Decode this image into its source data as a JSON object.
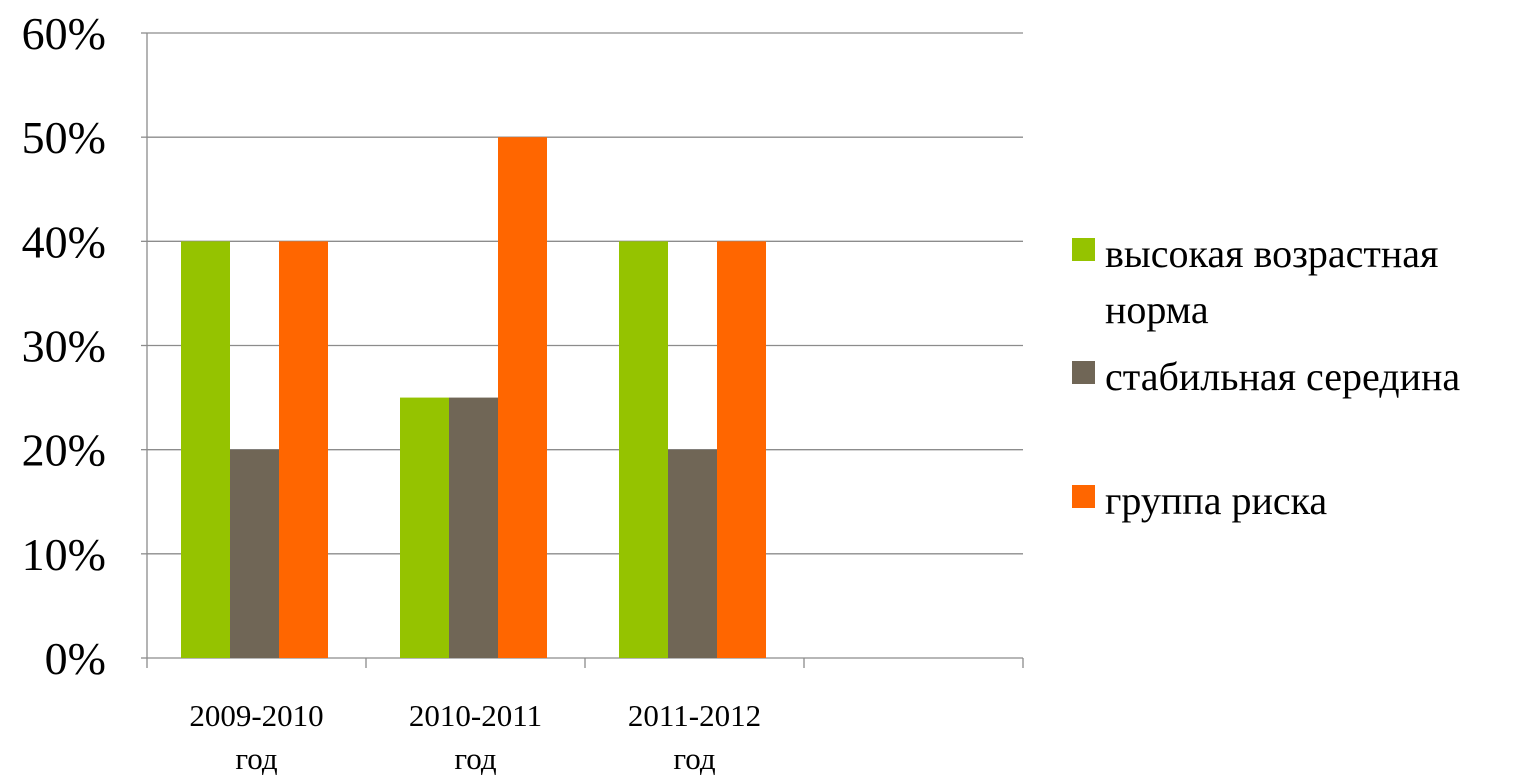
{
  "chart_data": {
    "type": "bar",
    "categories": [
      [
        "2009-2010",
        "год"
      ],
      [
        "2010-2011",
        "год"
      ],
      [
        "2011-2012",
        "год"
      ],
      [
        "",
        ""
      ]
    ],
    "series": [
      {
        "name": "высокая возрастная норма",
        "legend_lines": [
          "высокая возрастная",
          "норма"
        ],
        "color": "#95c300",
        "values": [
          40,
          25,
          40,
          null
        ]
      },
      {
        "name": "стабильная середина",
        "legend_lines": [
          "стабильная середина"
        ],
        "color": "#706656",
        "values": [
          20,
          25,
          20,
          null
        ]
      },
      {
        "name": "группа риска",
        "legend_lines": [
          "группа риска"
        ],
        "color": "#ff6600",
        "values": [
          40,
          50,
          40,
          null
        ]
      }
    ],
    "ylim": [
      0,
      60
    ],
    "yticks": [
      0,
      10,
      20,
      30,
      40,
      50,
      60
    ],
    "ytick_format": "%",
    "grid": true,
    "legend_position": "right",
    "title": "",
    "xlabel": "",
    "ylabel": ""
  }
}
